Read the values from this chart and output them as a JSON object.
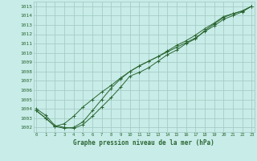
{
  "title": "Graphe pression niveau de la mer (hPa)",
  "bg_color": "#c8ece8",
  "grid_color": "#a0c8c0",
  "line_color": "#2a6632",
  "marker_color": "#2a6632",
  "text_color": "#2a6632",
  "xlabel_color": "#2a6632",
  "ylim": [
    1001.5,
    1015.5
  ],
  "yticks": [
    1002,
    1003,
    1004,
    1005,
    1006,
    1007,
    1008,
    1009,
    1010,
    1011,
    1012,
    1013,
    1014,
    1015
  ],
  "xticks": [
    0,
    1,
    2,
    3,
    4,
    5,
    6,
    7,
    8,
    9,
    10,
    11,
    12,
    13,
    14,
    15,
    16,
    17,
    18,
    19,
    20,
    21,
    22,
    23
  ],
  "xlim": [
    -0.3,
    23.3
  ],
  "series": [
    [
      1004.0,
      1003.3,
      1002.2,
      1002.0,
      1001.9,
      1002.3,
      1003.2,
      1004.2,
      1005.2,
      1006.3,
      1007.5,
      1007.9,
      1008.4,
      1009.1,
      1009.8,
      1010.3,
      1011.0,
      1011.5,
      1012.4,
      1013.1,
      1013.8,
      1014.2,
      1014.5,
      1015.0
    ],
    [
      1003.8,
      1003.0,
      1002.1,
      1001.9,
      1002.0,
      1002.6,
      1003.8,
      1005.0,
      1006.2,
      1007.2,
      1008.0,
      1008.6,
      1009.1,
      1009.6,
      1010.2,
      1010.8,
      1011.3,
      1011.9,
      1012.6,
      1013.2,
      1013.9,
      1014.2,
      1014.5,
      1015.0
    ],
    [
      1003.8,
      1003.0,
      1002.1,
      1002.4,
      1003.2,
      1004.2,
      1005.0,
      1005.8,
      1006.5,
      1007.3,
      1008.0,
      1008.6,
      1009.1,
      1009.6,
      1010.1,
      1010.6,
      1011.1,
      1011.6,
      1012.3,
      1012.9,
      1013.6,
      1014.0,
      1014.4,
      1015.0
    ]
  ]
}
